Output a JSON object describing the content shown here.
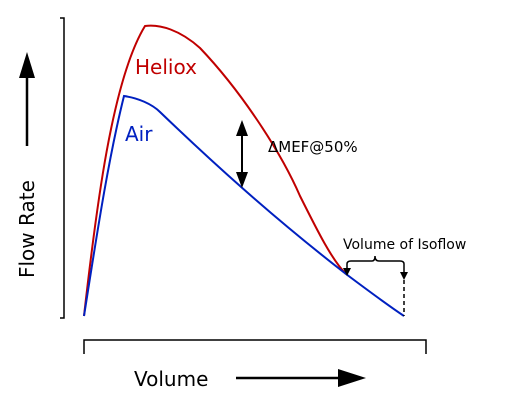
{
  "labels": {
    "y_axis": "Flow Rate",
    "x_axis": "Volume",
    "heliox": "Heliox",
    "air": "Air",
    "delta_mef": "ΔMEF@50%",
    "isoflow": "Volume of Isoflow"
  },
  "colors": {
    "heliox": "#c00000",
    "air": "#0020c0",
    "axis": "#000000"
  }
}
